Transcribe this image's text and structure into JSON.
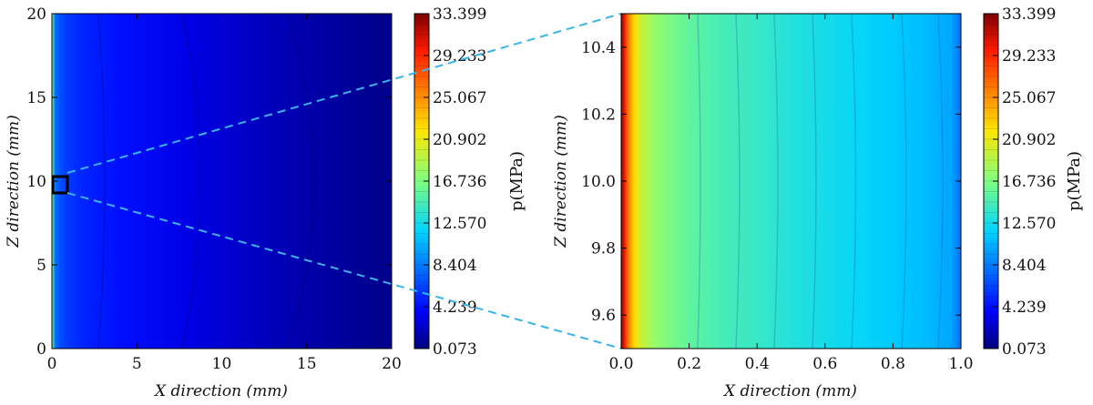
{
  "chart_data": [
    {
      "type": "heatmap",
      "xlabel": "X direction (mm)",
      "ylabel": "Z direction (mm)",
      "xlim": [
        0,
        20
      ],
      "ylim": [
        0,
        20
      ],
      "xticks": [
        "0",
        "5",
        "10",
        "15",
        "20"
      ],
      "yticks": [
        "0",
        "5",
        "10",
        "15",
        "20"
      ],
      "colorbar": {
        "label": "p(MPa)",
        "min": 0.073,
        "max": 33.399,
        "ticks": [
          "33.399",
          "29.233",
          "25.067",
          "20.902",
          "16.736",
          "12.570",
          "8.404",
          "4.239",
          "0.073"
        ]
      },
      "field_profile": {
        "x": [
          0,
          0.2,
          0.5,
          1,
          2,
          4,
          8,
          12,
          16,
          20
        ],
        "p": [
          16.7,
          8.0,
          6.6,
          5.8,
          5.0,
          4.3,
          3.0,
          2.0,
          1.1,
          0.4
        ]
      },
      "zoom_box": {
        "x": [
          0,
          1
        ],
        "z": [
          9.5,
          10.5
        ]
      }
    },
    {
      "type": "heatmap",
      "xlabel": "X direction (mm)",
      "ylabel": "Z direction (mm)",
      "xlim": [
        0,
        1
      ],
      "ylim": [
        9.5,
        10.5
      ],
      "xticks": [
        "0.0",
        "0.2",
        "0.4",
        "0.6",
        "0.8",
        "1.0"
      ],
      "yticks": [
        "9.6",
        "9.8",
        "10.0",
        "10.2",
        "10.4"
      ],
      "colorbar": {
        "label": "p(MPa)",
        "min": 0.073,
        "max": 33.399,
        "ticks": [
          "33.399",
          "29.233",
          "25.067",
          "20.902",
          "16.736",
          "12.570",
          "8.404",
          "4.239",
          "0.073"
        ]
      },
      "field_profile": {
        "x": [
          0,
          0.01,
          0.02,
          0.04,
          0.06,
          0.1,
          0.2,
          0.3,
          0.4,
          0.5,
          0.6,
          0.7,
          0.8,
          0.9,
          0.97,
          1.0
        ],
        "p": [
          33.0,
          30.0,
          26.0,
          22.0,
          19.5,
          17.5,
          15.5,
          14.5,
          14.0,
          13.2,
          12.6,
          12.0,
          11.4,
          10.8,
          10.0,
          8.0
        ]
      }
    }
  ]
}
